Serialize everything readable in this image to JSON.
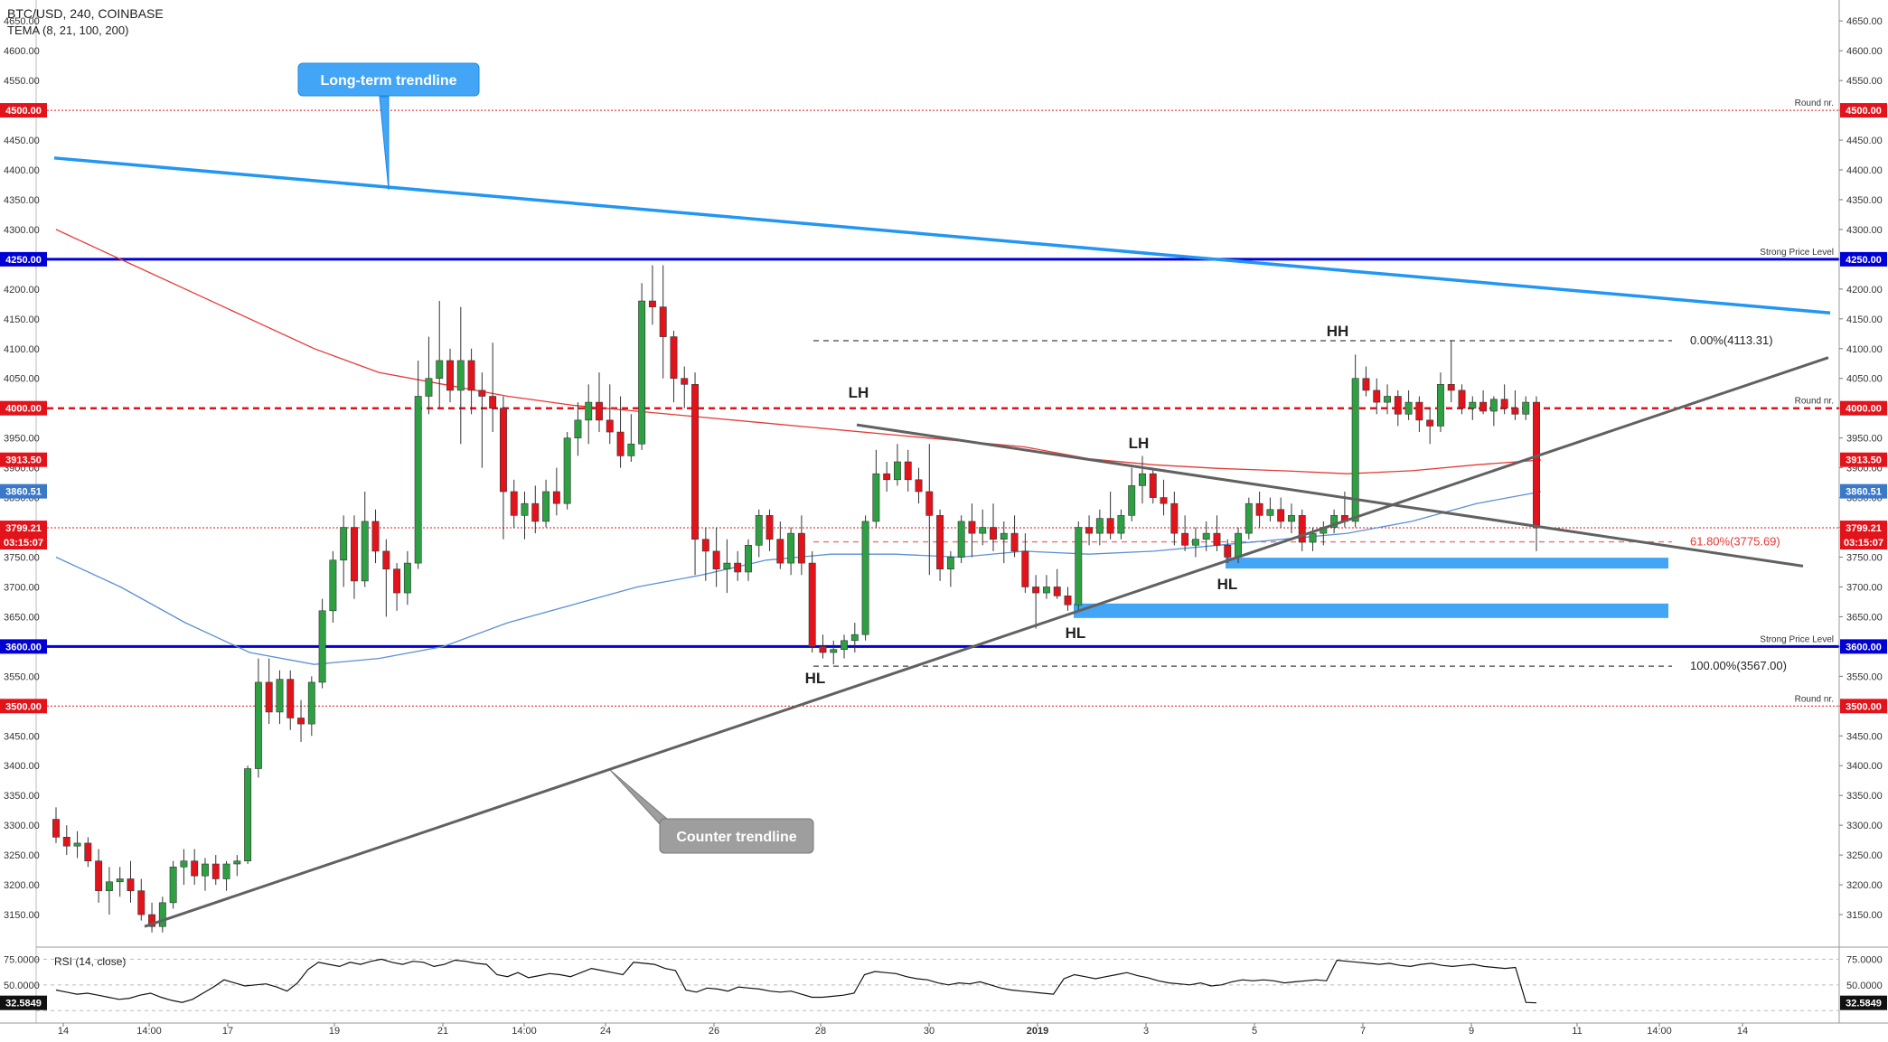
{
  "header": {
    "symbol_line": "BTC/USD, 240, COINBASE",
    "indicator_line": "TEMA (8, 21, 100, 200)"
  },
  "chart_data": {
    "type": "candlestick",
    "symbol": "BTC/USD",
    "interval": "240",
    "exchange": "COINBASE",
    "ylim": [
      3100,
      4670
    ],
    "y_ticks": [
      3150,
      3200,
      3250,
      3300,
      3350,
      3400,
      3450,
      3500,
      3550,
      3600,
      3650,
      3700,
      3750,
      3800,
      3850,
      3900,
      3950,
      4000,
      4050,
      4100,
      4150,
      4200,
      4250,
      4300,
      4350,
      4400,
      4450,
      4500,
      4550,
      4600,
      4650
    ],
    "x_ticks": [
      "14",
      "14:00",
      "17",
      "19",
      "21",
      "14:00",
      "24",
      "26",
      "28",
      "30",
      "2019",
      "3",
      "5",
      "7",
      "9",
      "11",
      "14:00",
      "14"
    ],
    "colors": {
      "up": "#2ea043",
      "down": "#e3131b",
      "tema_red": "#e53935",
      "tema_blue": "#5b8fd6",
      "trend_blue": "#2196f3",
      "trend_gray": "#616161",
      "strong_level": "#0000d4",
      "round_level": "#e3131b"
    },
    "candles_ohlc_approx": [
      [
        3310,
        3330,
        3270,
        3280
      ],
      [
        3280,
        3300,
        3250,
        3265
      ],
      [
        3265,
        3290,
        3245,
        3270
      ],
      [
        3270,
        3280,
        3230,
        3240
      ],
      [
        3240,
        3260,
        3170,
        3190
      ],
      [
        3190,
        3230,
        3150,
        3205
      ],
      [
        3205,
        3230,
        3180,
        3210
      ],
      [
        3210,
        3240,
        3170,
        3190
      ],
      [
        3190,
        3210,
        3140,
        3150
      ],
      [
        3150,
        3170,
        3120,
        3130
      ],
      [
        3130,
        3180,
        3120,
        3170
      ],
      [
        3170,
        3240,
        3160,
        3230
      ],
      [
        3230,
        3260,
        3200,
        3240
      ],
      [
        3240,
        3260,
        3200,
        3215
      ],
      [
        3215,
        3245,
        3190,
        3235
      ],
      [
        3235,
        3250,
        3200,
        3210
      ],
      [
        3210,
        3240,
        3190,
        3235
      ],
      [
        3235,
        3250,
        3215,
        3240
      ],
      [
        3240,
        3400,
        3235,
        3395
      ],
      [
        3395,
        3580,
        3380,
        3540
      ],
      [
        3540,
        3580,
        3470,
        3490
      ],
      [
        3490,
        3560,
        3470,
        3545
      ],
      [
        3545,
        3560,
        3460,
        3480
      ],
      [
        3480,
        3510,
        3440,
        3470
      ],
      [
        3470,
        3550,
        3450,
        3540
      ],
      [
        3540,
        3680,
        3530,
        3660
      ],
      [
        3660,
        3760,
        3640,
        3745
      ],
      [
        3745,
        3820,
        3700,
        3800
      ],
      [
        3800,
        3820,
        3680,
        3710
      ],
      [
        3710,
        3860,
        3700,
        3810
      ],
      [
        3810,
        3830,
        3740,
        3760
      ],
      [
        3760,
        3780,
        3650,
        3730
      ],
      [
        3730,
        3740,
        3660,
        3690
      ],
      [
        3690,
        3760,
        3670,
        3740
      ],
      [
        3740,
        4080,
        3730,
        4020
      ],
      [
        4020,
        4120,
        3990,
        4050
      ],
      [
        4050,
        4180,
        4000,
        4080
      ],
      [
        4080,
        4100,
        4010,
        4030
      ],
      [
        4030,
        4170,
        3940,
        4080
      ],
      [
        4080,
        4100,
        3990,
        4030
      ],
      [
        4030,
        4060,
        3900,
        4020
      ],
      [
        4020,
        4110,
        3960,
        4000
      ],
      [
        4000,
        4020,
        3780,
        3860
      ],
      [
        3860,
        3880,
        3800,
        3820
      ],
      [
        3820,
        3860,
        3780,
        3840
      ],
      [
        3840,
        3870,
        3790,
        3810
      ],
      [
        3810,
        3880,
        3800,
        3860
      ],
      [
        3860,
        3900,
        3820,
        3840
      ],
      [
        3840,
        3960,
        3830,
        3950
      ],
      [
        3950,
        4010,
        3920,
        3980
      ],
      [
        3980,
        4040,
        3940,
        4010
      ],
      [
        4010,
        4060,
        3960,
        3980
      ],
      [
        3980,
        4040,
        3940,
        3960
      ],
      [
        3960,
        4020,
        3900,
        3920
      ],
      [
        3920,
        3990,
        3910,
        3940
      ],
      [
        3940,
        4210,
        3930,
        4180
      ],
      [
        4180,
        4240,
        4140,
        4170
      ],
      [
        4170,
        4240,
        4050,
        4120
      ],
      [
        4120,
        4130,
        4010,
        4050
      ],
      [
        4050,
        4070,
        4000,
        4040
      ],
      [
        4040,
        4060,
        3720,
        3780
      ],
      [
        3780,
        3800,
        3710,
        3760
      ],
      [
        3760,
        3800,
        3700,
        3730
      ],
      [
        3730,
        3780,
        3690,
        3740
      ],
      [
        3740,
        3760,
        3710,
        3725
      ],
      [
        3725,
        3780,
        3710,
        3770
      ],
      [
        3770,
        3830,
        3750,
        3820
      ],
      [
        3820,
        3830,
        3760,
        3780
      ],
      [
        3780,
        3810,
        3730,
        3740
      ],
      [
        3740,
        3800,
        3720,
        3790
      ],
      [
        3790,
        3820,
        3720,
        3740
      ],
      [
        3740,
        3760,
        3590,
        3600
      ],
      [
        3600,
        3620,
        3580,
        3590
      ],
      [
        3590,
        3610,
        3570,
        3595
      ],
      [
        3595,
        3620,
        3580,
        3610
      ],
      [
        3610,
        3640,
        3590,
        3620
      ],
      [
        3620,
        3820,
        3610,
        3810
      ],
      [
        3810,
        3930,
        3800,
        3890
      ],
      [
        3890,
        3910,
        3860,
        3880
      ],
      [
        3880,
        3940,
        3870,
        3910
      ],
      [
        3910,
        3930,
        3860,
        3880
      ],
      [
        3880,
        3900,
        3840,
        3860
      ],
      [
        3860,
        3940,
        3720,
        3820
      ],
      [
        3820,
        3830,
        3710,
        3730
      ],
      [
        3730,
        3760,
        3700,
        3750
      ],
      [
        3750,
        3820,
        3740,
        3810
      ],
      [
        3810,
        3840,
        3750,
        3790
      ],
      [
        3790,
        3830,
        3770,
        3800
      ],
      [
        3800,
        3840,
        3760,
        3780
      ],
      [
        3780,
        3810,
        3740,
        3790
      ],
      [
        3790,
        3820,
        3750,
        3760
      ],
      [
        3760,
        3790,
        3690,
        3700
      ],
      [
        3700,
        3720,
        3630,
        3690
      ],
      [
        3690,
        3720,
        3680,
        3700
      ],
      [
        3700,
        3730,
        3680,
        3685
      ],
      [
        3685,
        3700,
        3660,
        3670
      ],
      [
        3670,
        3810,
        3660,
        3800
      ],
      [
        3800,
        3820,
        3770,
        3790
      ],
      [
        3790,
        3830,
        3770,
        3815
      ],
      [
        3815,
        3860,
        3780,
        3790
      ],
      [
        3790,
        3830,
        3780,
        3820
      ],
      [
        3820,
        3900,
        3810,
        3870
      ],
      [
        3870,
        3920,
        3840,
        3890
      ],
      [
        3890,
        3900,
        3840,
        3850
      ],
      [
        3850,
        3880,
        3820,
        3840
      ],
      [
        3840,
        3860,
        3770,
        3790
      ],
      [
        3790,
        3820,
        3760,
        3770
      ],
      [
        3770,
        3800,
        3750,
        3780
      ],
      [
        3780,
        3810,
        3760,
        3790
      ],
      [
        3790,
        3820,
        3760,
        3770
      ],
      [
        3770,
        3780,
        3740,
        3750
      ],
      [
        3750,
        3800,
        3740,
        3790
      ],
      [
        3790,
        3850,
        3780,
        3840
      ],
      [
        3840,
        3860,
        3800,
        3820
      ],
      [
        3820,
        3850,
        3810,
        3830
      ],
      [
        3830,
        3850,
        3800,
        3810
      ],
      [
        3810,
        3840,
        3790,
        3820
      ],
      [
        3820,
        3830,
        3760,
        3775
      ],
      [
        3775,
        3800,
        3760,
        3790
      ],
      [
        3790,
        3810,
        3770,
        3800
      ],
      [
        3800,
        3830,
        3790,
        3820
      ],
      [
        3820,
        3860,
        3800,
        3810
      ],
      [
        3810,
        4090,
        3800,
        4050
      ],
      [
        4050,
        4070,
        4020,
        4030
      ],
      [
        4030,
        4050,
        3990,
        4010
      ],
      [
        4010,
        4040,
        3990,
        4020
      ],
      [
        4020,
        4030,
        3970,
        3990
      ],
      [
        3990,
        4030,
        3980,
        4010
      ],
      [
        4010,
        4020,
        3960,
        3980
      ],
      [
        3980,
        4000,
        3940,
        3970
      ],
      [
        3970,
        4060,
        3960,
        4040
      ],
      [
        4040,
        4113,
        4010,
        4030
      ],
      [
        4030,
        4040,
        3990,
        4000
      ],
      [
        4000,
        4020,
        3980,
        4010
      ],
      [
        4010,
        4030,
        3990,
        3995
      ],
      [
        3995,
        4020,
        3970,
        4015
      ],
      [
        4015,
        4040,
        3990,
        4000
      ],
      [
        4000,
        4030,
        3980,
        3990
      ],
      [
        3990,
        4020,
        3980,
        4010
      ],
      [
        4010,
        4020,
        3760,
        3799
      ]
    ],
    "tema_red_approx": [
      4300,
      4250,
      4200,
      4150,
      4100,
      4060,
      4040,
      4020,
      4005,
      3995,
      3985,
      3975,
      3965,
      3955,
      3945,
      3935,
      3915,
      3905,
      3899,
      3895,
      3890,
      3895,
      3905,
      3913
    ],
    "tema_blue_approx": [
      3750,
      3700,
      3640,
      3590,
      3570,
      3580,
      3600,
      3640,
      3670,
      3700,
      3720,
      3745,
      3755,
      3755,
      3750,
      3760,
      3755,
      3760,
      3770,
      3780,
      3790,
      3810,
      3840,
      3860
    ],
    "horizontal_levels": [
      {
        "price": 4500,
        "label": "Round nr.",
        "style": "dotted-red"
      },
      {
        "price": 4250,
        "label": "Strong Price Level",
        "style": "solid-blue"
      },
      {
        "price": 4000,
        "label": "Round nr.",
        "style": "dashed-red"
      },
      {
        "price": 3600,
        "label": "Strong Price Level",
        "style": "solid-blue"
      },
      {
        "price": 3500,
        "label": "Round nr.",
        "style": "dotted-red"
      }
    ],
    "fibonacci": [
      {
        "price": 4113.31,
        "label": "0.00%(4113.31)"
      },
      {
        "price": 3775.69,
        "label": "61.80%(3775.69)"
      },
      {
        "price": 3567.0,
        "label": "100.00%(3567.00)"
      }
    ],
    "price_badges": [
      {
        "text": "4500.00",
        "color": "#e3131b"
      },
      {
        "text": "4250.00",
        "color": "#0000d4"
      },
      {
        "text": "4000.00",
        "color": "#e3131b"
      },
      {
        "text": "3913.50",
        "color": "#e3131b"
      },
      {
        "text": "3860.51",
        "color": "#3a78c8"
      },
      {
        "text": "3799.21",
        "color": "#e3131b"
      },
      {
        "text": "03:15:07",
        "color": "#e3131b"
      },
      {
        "text": "3600.00",
        "color": "#0000d4"
      },
      {
        "text": "3500.00",
        "color": "#e3131b"
      }
    ],
    "pattern_labels": [
      "LH",
      "LH",
      "HH",
      "HL",
      "HL",
      "HL"
    ],
    "callouts": {
      "long_term": "Long-term trendline",
      "counter": "Counter trendline"
    },
    "rsi": {
      "label": "RSI (14, close)",
      "ticks": [
        "75.0000",
        "50.0000"
      ],
      "current": "32.5849",
      "values_approx": [
        45,
        43,
        41,
        42,
        40,
        38,
        36,
        37,
        40,
        42,
        38,
        35,
        33,
        36,
        42,
        48,
        55,
        52,
        49,
        50,
        51,
        48,
        44,
        52,
        65,
        72,
        70,
        68,
        72,
        70,
        73,
        75,
        72,
        70,
        73,
        72,
        68,
        70,
        74,
        73,
        71,
        70,
        60,
        58,
        62,
        57,
        59,
        61,
        60,
        58,
        62,
        66,
        64,
        62,
        60,
        72,
        71,
        70,
        66,
        64,
        45,
        43,
        47,
        46,
        44,
        48,
        47,
        46,
        44,
        43,
        44,
        41,
        38,
        38,
        39,
        40,
        42,
        60,
        63,
        62,
        61,
        58,
        56,
        55,
        52,
        50,
        52,
        51,
        53,
        50,
        47,
        45,
        44,
        43,
        42,
        41,
        56,
        60,
        58,
        56,
        58,
        60,
        62,
        59,
        57,
        54,
        52,
        51,
        50,
        52,
        49,
        50,
        53,
        55,
        54,
        55,
        54,
        52,
        53,
        54,
        55,
        54,
        74,
        73,
        72,
        71,
        70,
        71,
        69,
        68,
        70,
        71,
        69,
        68,
        69,
        70,
        68,
        67,
        66,
        67,
        33,
        32.58
      ]
    }
  }
}
